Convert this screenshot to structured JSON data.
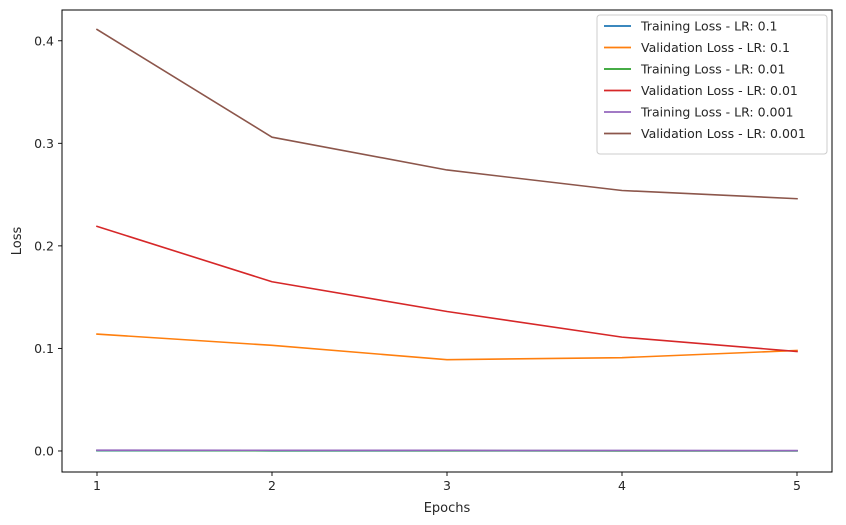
{
  "chart_data": {
    "type": "line",
    "title": "",
    "xlabel": "Epochs",
    "ylabel": "Loss",
    "x": [
      1,
      2,
      3,
      4,
      5
    ],
    "xticks": [
      1,
      2,
      3,
      4,
      5
    ],
    "yticks": [
      0.0,
      0.1,
      0.2,
      0.3,
      0.4
    ],
    "ytick_labels": [
      "0.0",
      "0.1",
      "0.2",
      "0.3",
      "0.4"
    ],
    "xlim": [
      0.8,
      5.2
    ],
    "ylim": [
      -0.0205,
      0.43
    ],
    "grid": false,
    "legend_position": "top-right",
    "series": [
      {
        "name": "Training Loss - LR: 0.1",
        "color": "#1f77b4",
        "values": [
          0.0003,
          0.0002,
          0.0002,
          0.0001,
          0.0001
        ]
      },
      {
        "name": "Validation Loss - LR: 0.1",
        "color": "#ff7f0e",
        "values": [
          0.114,
          0.103,
          0.089,
          0.091,
          0.098
        ]
      },
      {
        "name": "Training Loss - LR: 0.01",
        "color": "#2ca02c",
        "values": [
          0.0005,
          0.0004,
          0.0003,
          0.0002,
          0.0002
        ]
      },
      {
        "name": "Validation Loss - LR: 0.01",
        "color": "#d62728",
        "values": [
          0.219,
          0.165,
          0.136,
          0.111,
          0.097
        ]
      },
      {
        "name": "Training Loss - LR: 0.001",
        "color": "#9467bd",
        "values": [
          0.0008,
          0.0007,
          0.0006,
          0.0005,
          0.0004
        ]
      },
      {
        "name": "Validation Loss - LR: 0.001",
        "color": "#8c564b",
        "values": [
          0.411,
          0.306,
          0.274,
          0.254,
          0.246
        ]
      }
    ]
  }
}
